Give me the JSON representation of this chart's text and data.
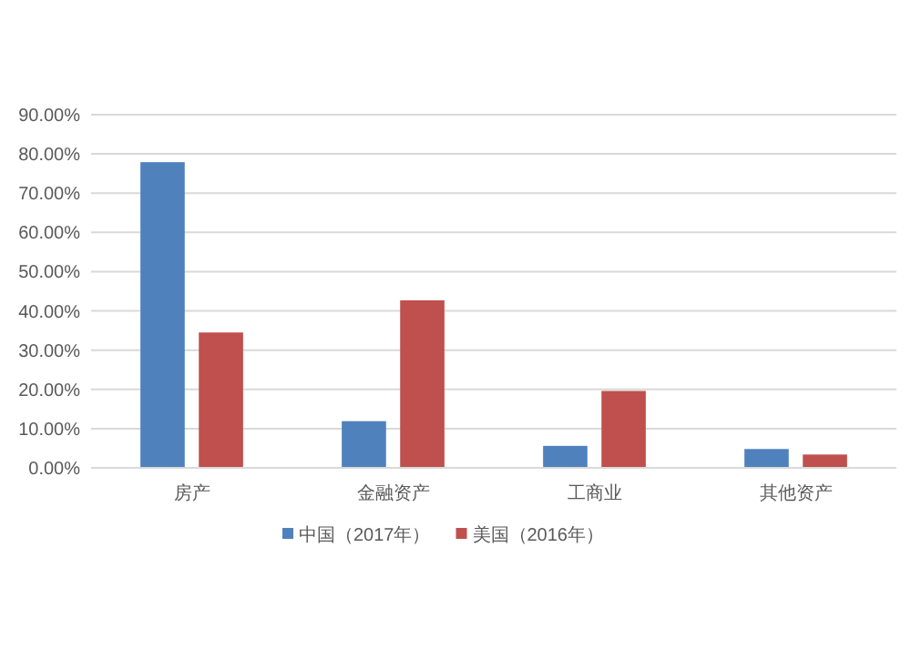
{
  "chart_data": {
    "type": "bar",
    "categories": [
      "房产",
      "金融资产",
      "工商业",
      "其他资产"
    ],
    "series": [
      {
        "name": "中国（2017年）",
        "color": "#4f81bd",
        "values": [
          77.9,
          11.9,
          5.6,
          4.8
        ]
      },
      {
        "name": "美国（2016年）",
        "color": "#c0504d",
        "values": [
          34.5,
          42.7,
          19.6,
          3.4
        ]
      }
    ],
    "ylim": [
      0,
      90
    ],
    "yticks": [
      {
        "value": 0,
        "label": "0.00%"
      },
      {
        "value": 10,
        "label": "10.00%"
      },
      {
        "value": 20,
        "label": "20.00%"
      },
      {
        "value": 30,
        "label": "30.00%"
      },
      {
        "value": 40,
        "label": "40.00%"
      },
      {
        "value": 50,
        "label": "50.00%"
      },
      {
        "value": 60,
        "label": "60.00%"
      },
      {
        "value": 70,
        "label": "70.00%"
      },
      {
        "value": 80,
        "label": "80.00%"
      },
      {
        "value": 90,
        "label": "90.00%"
      }
    ],
    "grid": "y",
    "legend": "bottom"
  }
}
